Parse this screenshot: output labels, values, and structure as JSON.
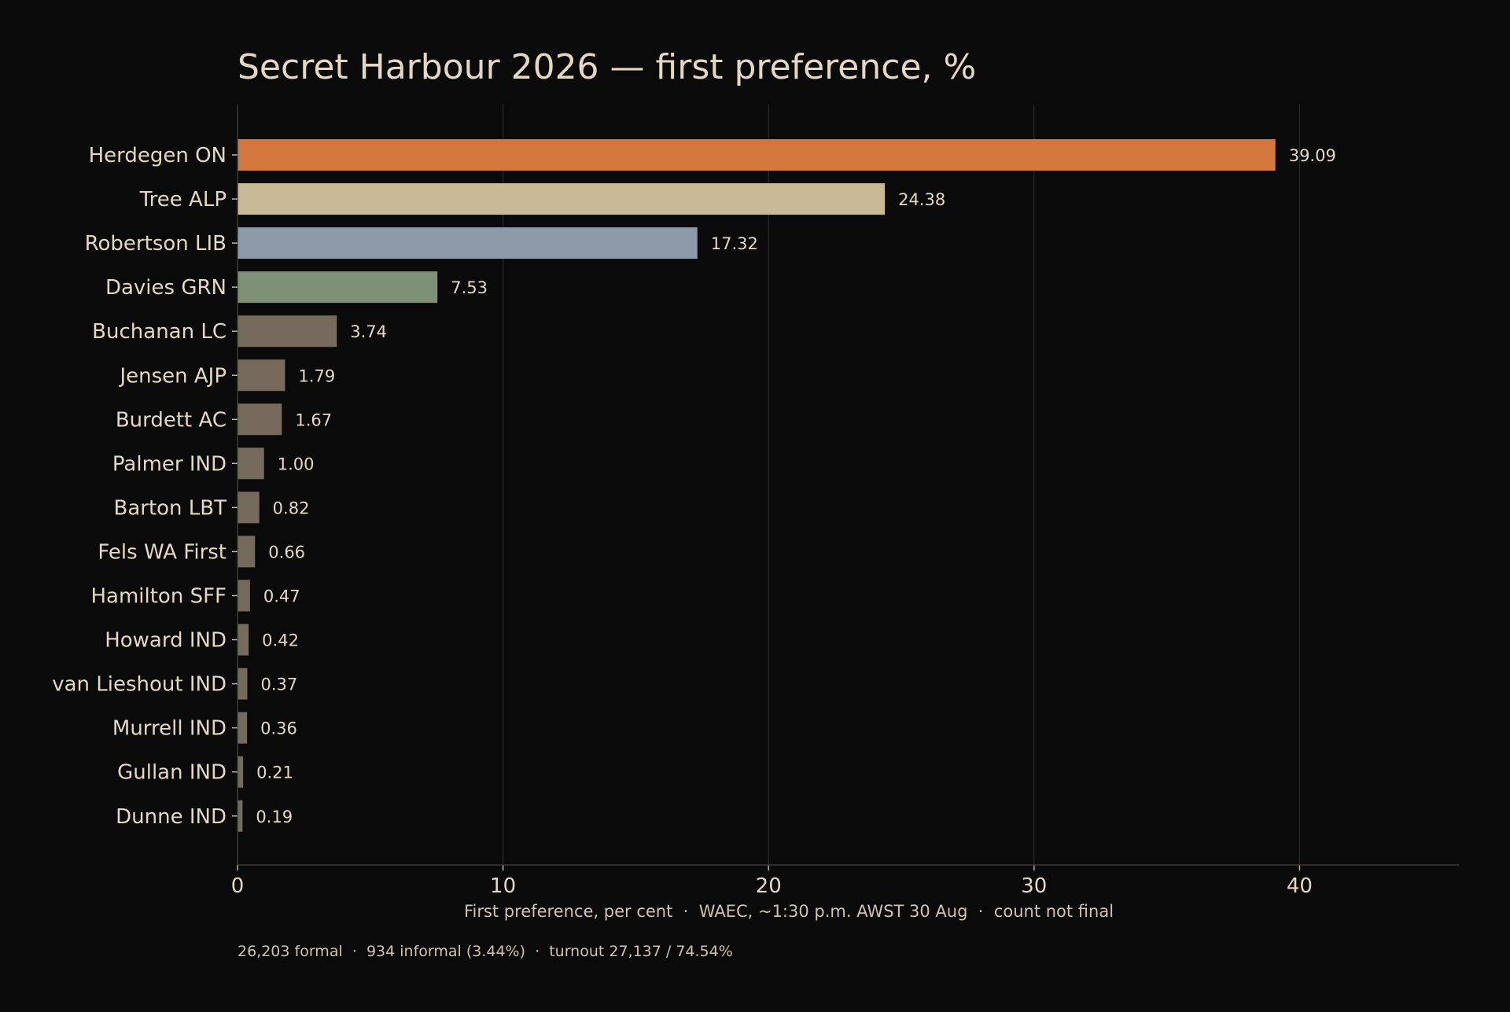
{
  "chart_data": {
    "type": "bar",
    "orientation": "horizontal",
    "title": "Secret Harbour 2026 — first preference, %",
    "xlabel": "First preference, per cent  ·  WAEC, ~1:30 p.m. AWST 30 Aug  ·  count not final",
    "footnote": "26,203 formal  ·  934 informal (3.44%)  ·  turnout 27,137 / 74.54%",
    "xlim": [
      0,
      46
    ],
    "xticks": [
      0,
      10,
      20,
      30,
      40
    ],
    "grid": true,
    "categories": [
      "Herdegen ON",
      "Tree ALP",
      "Robertson LIB",
      "Davies GRN",
      "Buchanan LC",
      "Jensen AJP",
      "Burdett AC",
      "Palmer IND",
      "Barton LBT",
      "Fels WA First",
      "Hamilton SFF",
      "Howard IND",
      "van Lieshout IND",
      "Murrell IND",
      "Gullan IND",
      "Dunne IND"
    ],
    "values": [
      39.09,
      24.38,
      17.32,
      7.53,
      3.74,
      1.79,
      1.67,
      1.0,
      0.82,
      0.66,
      0.47,
      0.42,
      0.37,
      0.36,
      0.21,
      0.19
    ],
    "value_labels": [
      "39.09",
      "24.38",
      "17.32",
      "7.53",
      "3.74",
      "1.79",
      "1.67",
      "1.00",
      "0.82",
      "0.66",
      "0.47",
      "0.42",
      "0.37",
      "0.36",
      "0.21",
      "0.19"
    ],
    "colors": [
      "#d4773c",
      "#c9ba97",
      "#8e9aaa",
      "#7e9176",
      "#756a5b",
      "#756a5b",
      "#756a5b",
      "#756a5b",
      "#756a5b",
      "#756a5b",
      "#756a5b",
      "#756a5b",
      "#756a5b",
      "#756a5b",
      "#756a5b",
      "#756a5b"
    ]
  }
}
